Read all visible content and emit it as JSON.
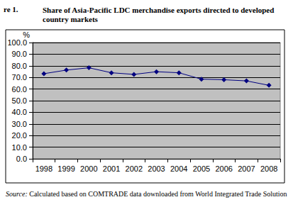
{
  "chart_data": {
    "type": "line",
    "figure_number": "re 1.",
    "title": "Share of Asia-Pacific LDC merchandise exports directed to developed country markets",
    "y_label": "%",
    "source": "Source: Calculated based on COMTRADE data downloaded from World Integrated Trade Solution",
    "categories": [
      "1998",
      "1999",
      "2000",
      "2001",
      "2002",
      "2003",
      "2004",
      "2005",
      "2006",
      "2007",
      "2008"
    ],
    "values": [
      73.2,
      76.3,
      78.3,
      74.0,
      72.6,
      74.9,
      74.0,
      68.5,
      68.0,
      67.0,
      63.2
    ],
    "color": "#000080",
    "marker": "diamond",
    "ylim": [
      0,
      100
    ],
    "yticks": [
      {
        "value": 0,
        "label": "0.0"
      },
      {
        "value": 10,
        "label": "10.0"
      },
      {
        "value": 20,
        "label": "20.0"
      },
      {
        "value": 30,
        "label": "30.0"
      },
      {
        "value": 40,
        "label": "40.0"
      },
      {
        "value": 50,
        "label": "50.0"
      },
      {
        "value": 60,
        "label": "60.0"
      },
      {
        "value": 70,
        "label": "70.0"
      },
      {
        "value": 80,
        "label": "80.0"
      },
      {
        "value": 90,
        "label": "90.0"
      },
      {
        "value": 100,
        "label": "100.0"
      }
    ],
    "grid": true
  }
}
